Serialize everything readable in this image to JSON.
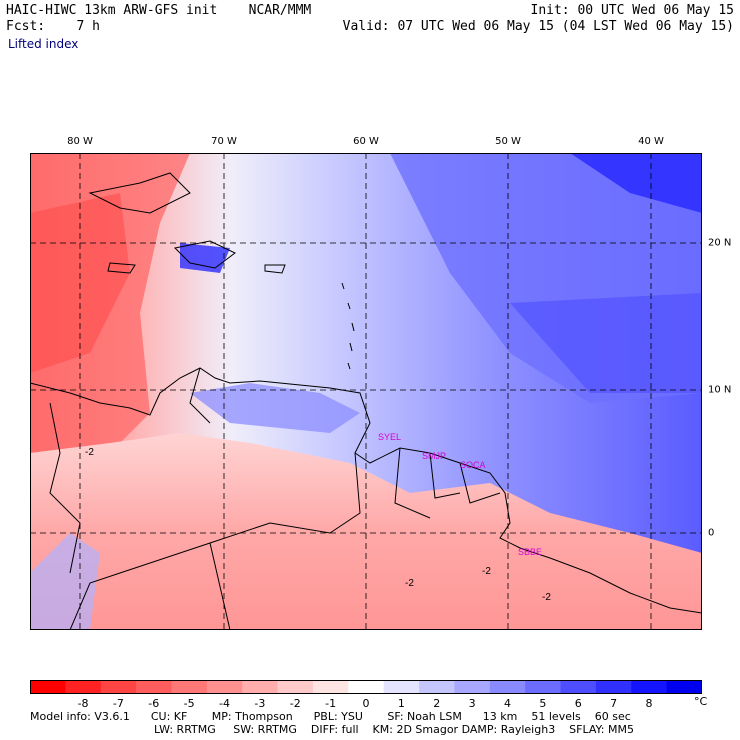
{
  "header": {
    "model_title": "HAIC-HIWC 13km ARW-GFS init    NCAR/MMM",
    "init_line": "Init: 00 UTC Wed 06 May 15",
    "fcst_label": "Fcst:    7 h",
    "valid_line": "Valid: 07 UTC Wed 06 May 15 (04 LST Wed 06 May 15)",
    "field_name": "Lifted index"
  },
  "map": {
    "lon_labels": [
      "80 W",
      "70 W",
      "60 W",
      "50 W",
      "40 W"
    ],
    "lat_labels": [
      "20 N",
      "10 N",
      "0"
    ],
    "station_labels": [
      "SYEL",
      "SMJP",
      "SOCA",
      "SBBE"
    ],
    "station_color": "#d400d4",
    "contour_labels": [
      "-2",
      "-2",
      "-2",
      "-2"
    ]
  },
  "colorbar": {
    "colors": [
      "#ff0000",
      "#ff2222",
      "#ff4444",
      "#ff5d5d",
      "#ff7878",
      "#ff9090",
      "#ffadad",
      "#ffcaca",
      "#ffe4e4",
      "#ffffff",
      "#e4e4ff",
      "#c6c6ff",
      "#a8a8ff",
      "#8a8aff",
      "#6c6cff",
      "#4e4eff",
      "#3030ff",
      "#1414ff",
      "#0000f0"
    ],
    "labels": [
      "-8",
      "-7",
      "-6",
      "-5",
      "-4",
      "-3",
      "-2",
      "-1",
      "0",
      "1",
      "2",
      "3",
      "4",
      "5",
      "6",
      "7",
      "8"
    ],
    "unit": "°C"
  },
  "footer": {
    "line1": "Model info: V3.6.1      CU: KF       MP: Thompson      PBL: YSU       SF: Noah LSM      13 km    51 levels    60 sec",
    "line2": "LW: RRTMG     SW: RRTMG    DIFF: full    KM: 2D Smagor DAMP: Rayleigh3    SFLAY: MM5"
  }
}
